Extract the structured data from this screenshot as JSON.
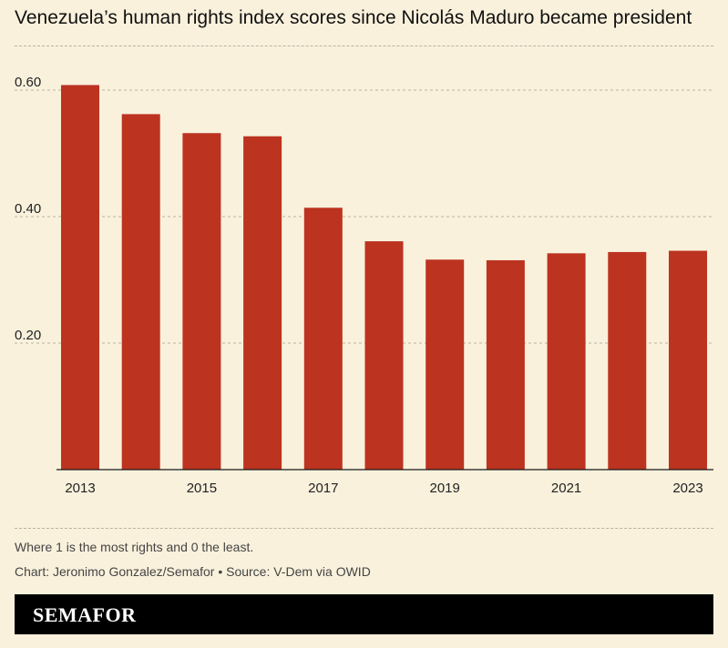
{
  "header": {
    "title": "Venezuela’s human rights index scores since Nicolás Maduro became president"
  },
  "footer": {
    "note": "Where 1 is the most rights and 0 the least.",
    "credit": "Chart: Jeronimo Gonzalez/Semafor • Source: V-Dem via OWID",
    "brand": "SEMAFOR"
  },
  "colors": {
    "background": "#f9f1dc",
    "bar": "#bc3320",
    "brand_bar": "#000000"
  },
  "chart_data": {
    "type": "bar",
    "title": "Venezuela’s human rights index scores since Nicolás Maduro became president",
    "xlabel": "",
    "ylabel": "",
    "categories": [
      "2013",
      "2014",
      "2015",
      "2016",
      "2017",
      "2018",
      "2019",
      "2020",
      "2021",
      "2022",
      "2023"
    ],
    "values": [
      0.608,
      0.562,
      0.532,
      0.527,
      0.414,
      0.361,
      0.332,
      0.331,
      0.342,
      0.344,
      0.346
    ],
    "x_tick_labels": [
      "2013",
      "2015",
      "2017",
      "2019",
      "2021",
      "2023"
    ],
    "y_ticks": [
      0.2,
      0.4,
      0.6
    ],
    "y_tick_labels": [
      "0.20",
      "0.40",
      "0.60"
    ],
    "ylim": [
      0,
      0.6
    ],
    "grid": true,
    "legend": "none"
  }
}
